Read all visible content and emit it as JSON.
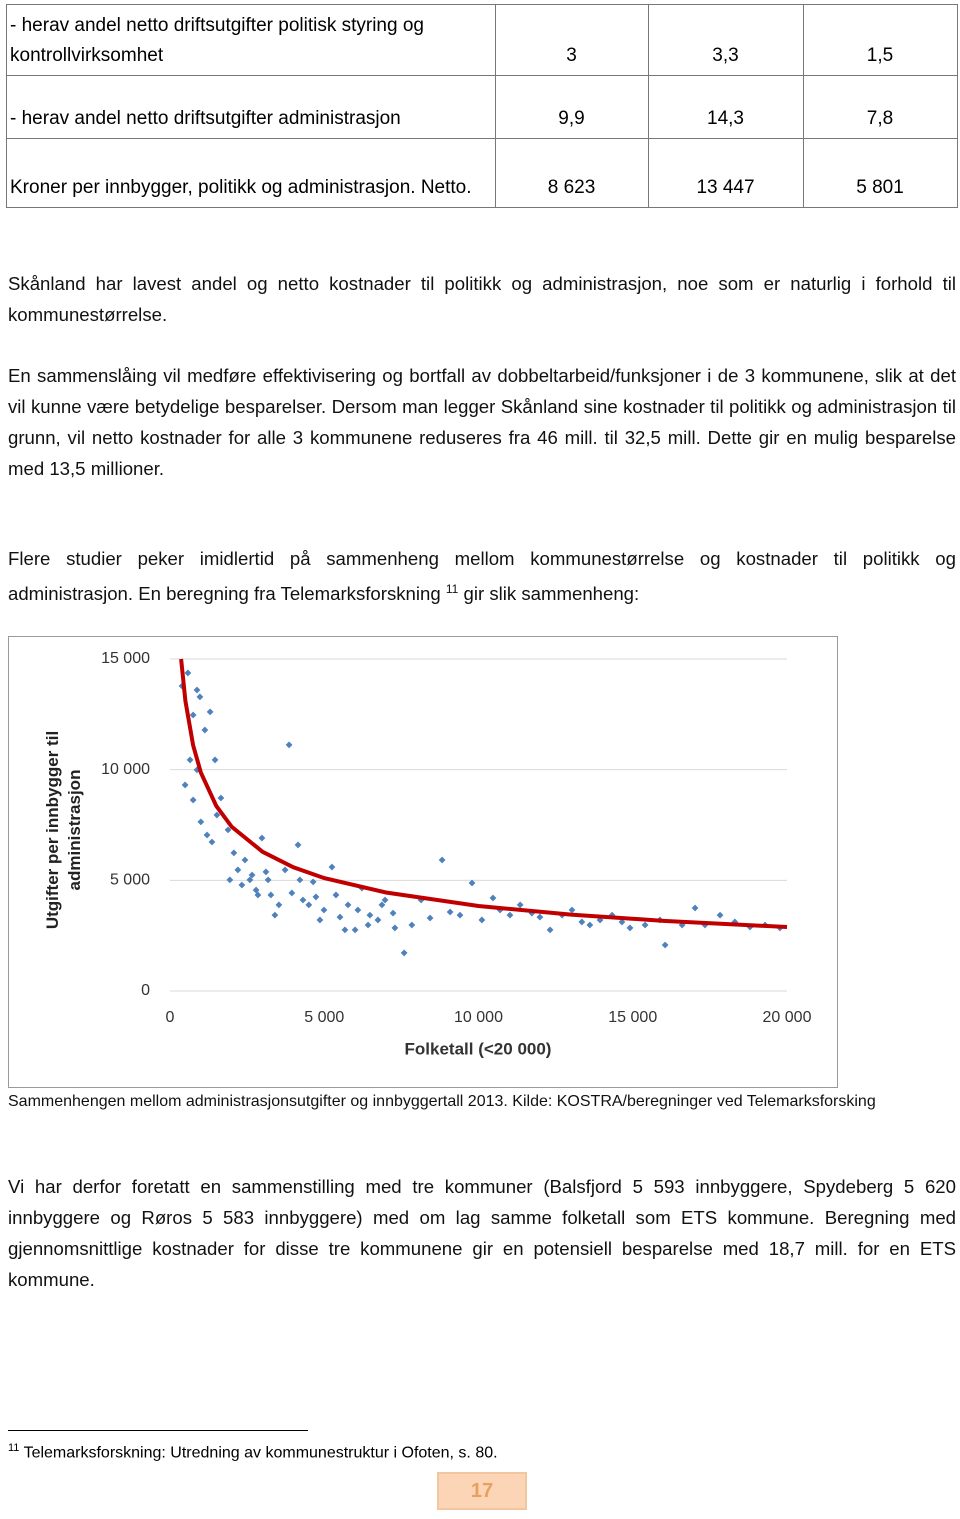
{
  "table": {
    "rows": [
      [
        "- herav andel  netto driftsutgifter politisk styring og kontrollvirksomhet",
        "3",
        "3,3",
        "1,5"
      ],
      [
        " - herav andel netto driftsutgifter administrasjon",
        "9,9",
        "14,3",
        "7,8"
      ],
      [
        "Kroner per innbygger, politikk og administrasjon. Netto.",
        "8 623",
        "13 447",
        "5 801"
      ]
    ]
  },
  "paragraphs": [
    "Skånland har lavest andel og netto kostnader til politikk og administrasjon, noe som er naturlig i forhold til kommunestørrelse.",
    "En sammenslåing vil medføre effektivisering og bortfall av dobbeltarbeid/funksjoner i de 3 kommunene, slik at det vil kunne være betydelige besparelser. Dersom man legger Skånland sine kostnader til politikk og administrasjon til grunn, vil netto kostnader for alle 3 kommunene reduseres fra 46 mill. til 32,5 mill. Dette gir en mulig besparelse med 13,5 millioner."
  ],
  "paragraph3": {
    "before": "Flere studier peker imidlertid på sammenheng mellom kommunestørrelse og kostnader til politikk og administrasjon. En beregning fra Telemarksforskning ",
    "ref": "11",
    "after": " gir slik sammenheng:"
  },
  "chart_data": {
    "type": "scatter",
    "ylabel": "Utgifter per innbygger til administrasjon",
    "xlabel": "Folketall (<20 000)",
    "xlim": [
      0,
      20000
    ],
    "ylim": [
      0,
      15000
    ],
    "xticks": [
      {
        "value": 0,
        "label": "0"
      },
      {
        "value": 5000,
        "label": "5 000"
      },
      {
        "value": 10000,
        "label": "10 000"
      },
      {
        "value": 15000,
        "label": "15 000"
      },
      {
        "value": 20000,
        "label": "20 000"
      }
    ],
    "yticks": [
      {
        "value": 0,
        "label": "0"
      },
      {
        "value": 5000,
        "label": "5 000"
      },
      {
        "value": 10000,
        "label": "10 000"
      },
      {
        "value": 15000,
        "label": "15 000"
      }
    ],
    "grid": true,
    "series": [
      {
        "color": "#4f81bd",
        "style": "points",
        "x": [
          390,
          580,
          875,
          970,
          1300,
          650,
          875,
          490,
          750,
          1000,
          1200,
          1360,
          1520,
          1650,
          1880,
          2070,
          2200,
          2430,
          2590,
          2790,
          2980,
          3110,
          3270,
          3530,
          3730,
          3860,
          4150,
          4310,
          4500,
          4730,
          4990,
          5250,
          5510,
          5770,
          6000,
          6220,
          6480,
          6740,
          6970,
          7230,
          7590,
          7840,
          8140,
          8430,
          8820,
          9080,
          9400,
          9790,
          10110,
          10470,
          10700,
          11020,
          11350,
          11730,
          11990,
          12320,
          12710,
          13030,
          13350,
          13610,
          13940,
          14330,
          14650,
          14910,
          15400,
          15880,
          16050,
          16600,
          17020,
          17340,
          17830,
          18310,
          18800,
          19290,
          19770,
          1940,
          2330,
          2660,
          2850,
          3180,
          3400,
          3950,
          4210,
          4640,
          4860,
          5380,
          5670,
          6090,
          6420,
          6870,
          7290,
          1460,
          1130,
          750
        ],
        "values": [
          13780,
          14370,
          13600,
          13290,
          12610,
          10440,
          9990,
          9310,
          8630,
          7640,
          7050,
          6730,
          7950,
          8720,
          7280,
          6240,
          5470,
          5920,
          5020,
          4560,
          6910,
          5380,
          4340,
          3890,
          5470,
          11120,
          6600,
          4110,
          3890,
          4250,
          3660,
          5600,
          3340,
          3890,
          2760,
          4650,
          3430,
          3210,
          4110,
          3520,
          1720,
          2980,
          4110,
          3300,
          5920,
          3570,
          3430,
          4880,
          3210,
          4200,
          3660,
          3430,
          3890,
          3520,
          3340,
          2760,
          3430,
          3660,
          3120,
          2980,
          3210,
          3430,
          3120,
          2850,
          2980,
          3210,
          2080,
          2980,
          3750,
          2980,
          3430,
          3120,
          2890,
          2980,
          2850,
          5020,
          4790,
          5240,
          4340,
          5020,
          3430,
          4430,
          5020,
          4930,
          3210,
          4340,
          2760,
          3660,
          2980,
          3890,
          2850,
          10440,
          11790,
          12470
        ]
      },
      {
        "color": "#c00000",
        "style": "line",
        "x": [
          360,
          500,
          750,
          1000,
          1500,
          2000,
          3000,
          4000,
          5000,
          7000,
          10000,
          13000,
          16000,
          20000
        ],
        "values": [
          15000,
          13100,
          11100,
          9870,
          8360,
          7420,
          6290,
          5590,
          5100,
          4450,
          3840,
          3450,
          3170,
          2890
        ]
      }
    ]
  },
  "caption": "Sammenhengen mellom administrasjonsutgifter og innbyggertall 2013. Kilde: KOSTRA/beregninger ved Telemarksforsking",
  "paragraph4": "Vi har derfor foretatt en sammenstilling med tre kommuner (Balsfjord 5 593 innbyggere, Spydeberg 5 620 innbyggere og Røros 5 583 innbyggere) med om lag samme folketall som ETS kommune. Beregning med gjennomsnittlige kostnader for disse tre kommunene gir en potensiell besparelse med 18,7 mill. for en ETS kommune.",
  "footnote": {
    "number": "11",
    "text": "Telemarksforskning: Utredning av kommunestruktur i Ofoten, s. 80."
  },
  "page_number": "17"
}
